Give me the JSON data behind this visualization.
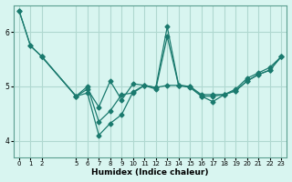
{
  "xlabel": "Humidex (Indice chaleur)",
  "ylabel": "",
  "bg_color": "#d8f5f0",
  "line_color": "#1a7a6e",
  "grid_color": "#b0d8d0",
  "xlim": [
    -0.5,
    23.5
  ],
  "ylim": [
    3.7,
    6.5
  ],
  "yticks": [
    4,
    5,
    6
  ],
  "xticks": [
    0,
    1,
    2,
    5,
    6,
    7,
    8,
    9,
    10,
    11,
    12,
    13,
    14,
    15,
    16,
    17,
    18,
    19,
    20,
    21,
    22,
    23
  ],
  "series": [
    {
      "x": [
        0,
        1,
        2,
        5,
        6,
        7,
        8,
        9,
        10,
        11,
        12,
        13,
        14,
        15,
        16,
        17,
        18,
        19,
        20,
        21,
        22,
        23
      ],
      "y": [
        6.4,
        5.75,
        5.55,
        4.82,
        4.95,
        4.62,
        5.1,
        4.75,
        5.05,
        5.02,
        4.98,
        6.1,
        5.02,
        5.0,
        4.85,
        4.85,
        4.85,
        4.95,
        5.15,
        5.25,
        5.35,
        5.55
      ]
    },
    {
      "x": [
        0,
        1,
        2,
        5,
        6,
        7,
        8,
        9,
        10,
        11,
        12,
        13,
        14,
        15,
        16,
        17,
        18,
        19,
        20,
        21,
        22,
        23
      ],
      "y": [
        6.4,
        5.75,
        5.55,
        4.82,
        5.0,
        4.35,
        4.55,
        4.85,
        4.88,
        5.02,
        4.98,
        5.02,
        5.02,
        4.98,
        4.82,
        4.82,
        4.85,
        4.92,
        5.1,
        5.22,
        5.3,
        5.55
      ]
    },
    {
      "x": [
        2,
        5,
        6,
        7,
        8,
        9,
        10,
        11,
        12,
        13,
        14,
        15,
        16,
        17,
        18,
        19,
        20,
        21,
        22,
        23
      ],
      "y": [
        5.55,
        4.82,
        4.88,
        4.1,
        4.32,
        4.48,
        4.9,
        5.02,
        4.95,
        5.92,
        5.02,
        5.0,
        4.82,
        4.72,
        4.85,
        4.92,
        5.1,
        5.22,
        5.3,
        5.55
      ]
    }
  ]
}
